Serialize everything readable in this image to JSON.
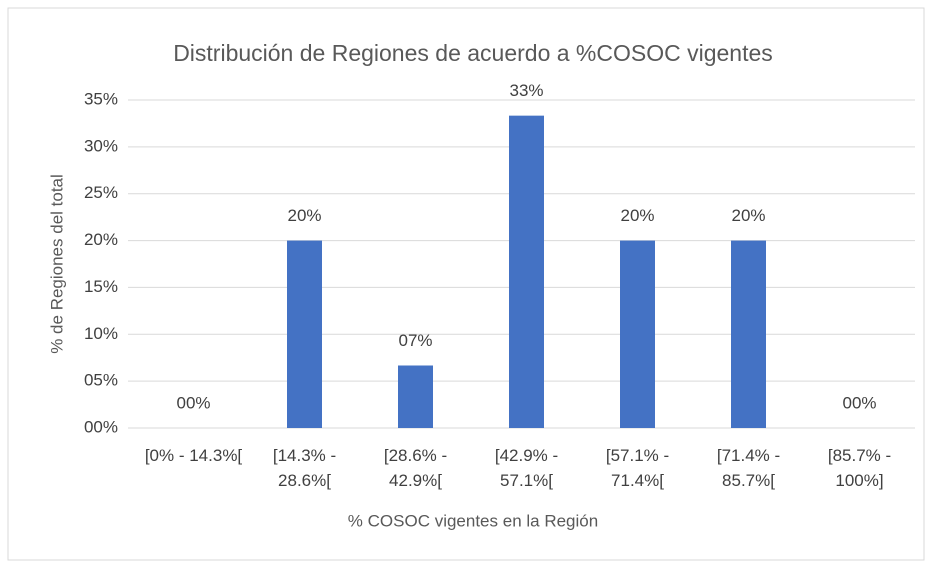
{
  "chart_data": {
    "type": "bar",
    "title": "Distribución de Regiones de acuerdo a %COSOC vigentes",
    "x_label": "% COSOC vigentes en la Región",
    "y_label": "% de Regiones del total",
    "categories": [
      "[0% - 14.3%[",
      "[14.3% - 28.6%[",
      "[28.6% - 42.9%[",
      "[42.9% - 57.1%[",
      "[57.1% - 71.4%[",
      "[71.4% - 85.7%[",
      "[85.7% - 100%]"
    ],
    "values": [
      0,
      20,
      6.67,
      33.33,
      20,
      20,
      0
    ],
    "value_labels": [
      "00%",
      "20%",
      "07%",
      "33%",
      "20%",
      "20%",
      "00%"
    ],
    "color": "#4472c4",
    "ylim": [
      0,
      35
    ],
    "yticks": [
      {
        "value": 0,
        "label": "00%"
      },
      {
        "value": 5,
        "label": "05%"
      },
      {
        "value": 10,
        "label": "10%"
      },
      {
        "value": 15,
        "label": "15%"
      },
      {
        "value": 20,
        "label": "20%"
      },
      {
        "value": 25,
        "label": "25%"
      },
      {
        "value": 30,
        "label": "30%"
      },
      {
        "value": 35,
        "label": "35%"
      }
    ],
    "grid": true
  }
}
